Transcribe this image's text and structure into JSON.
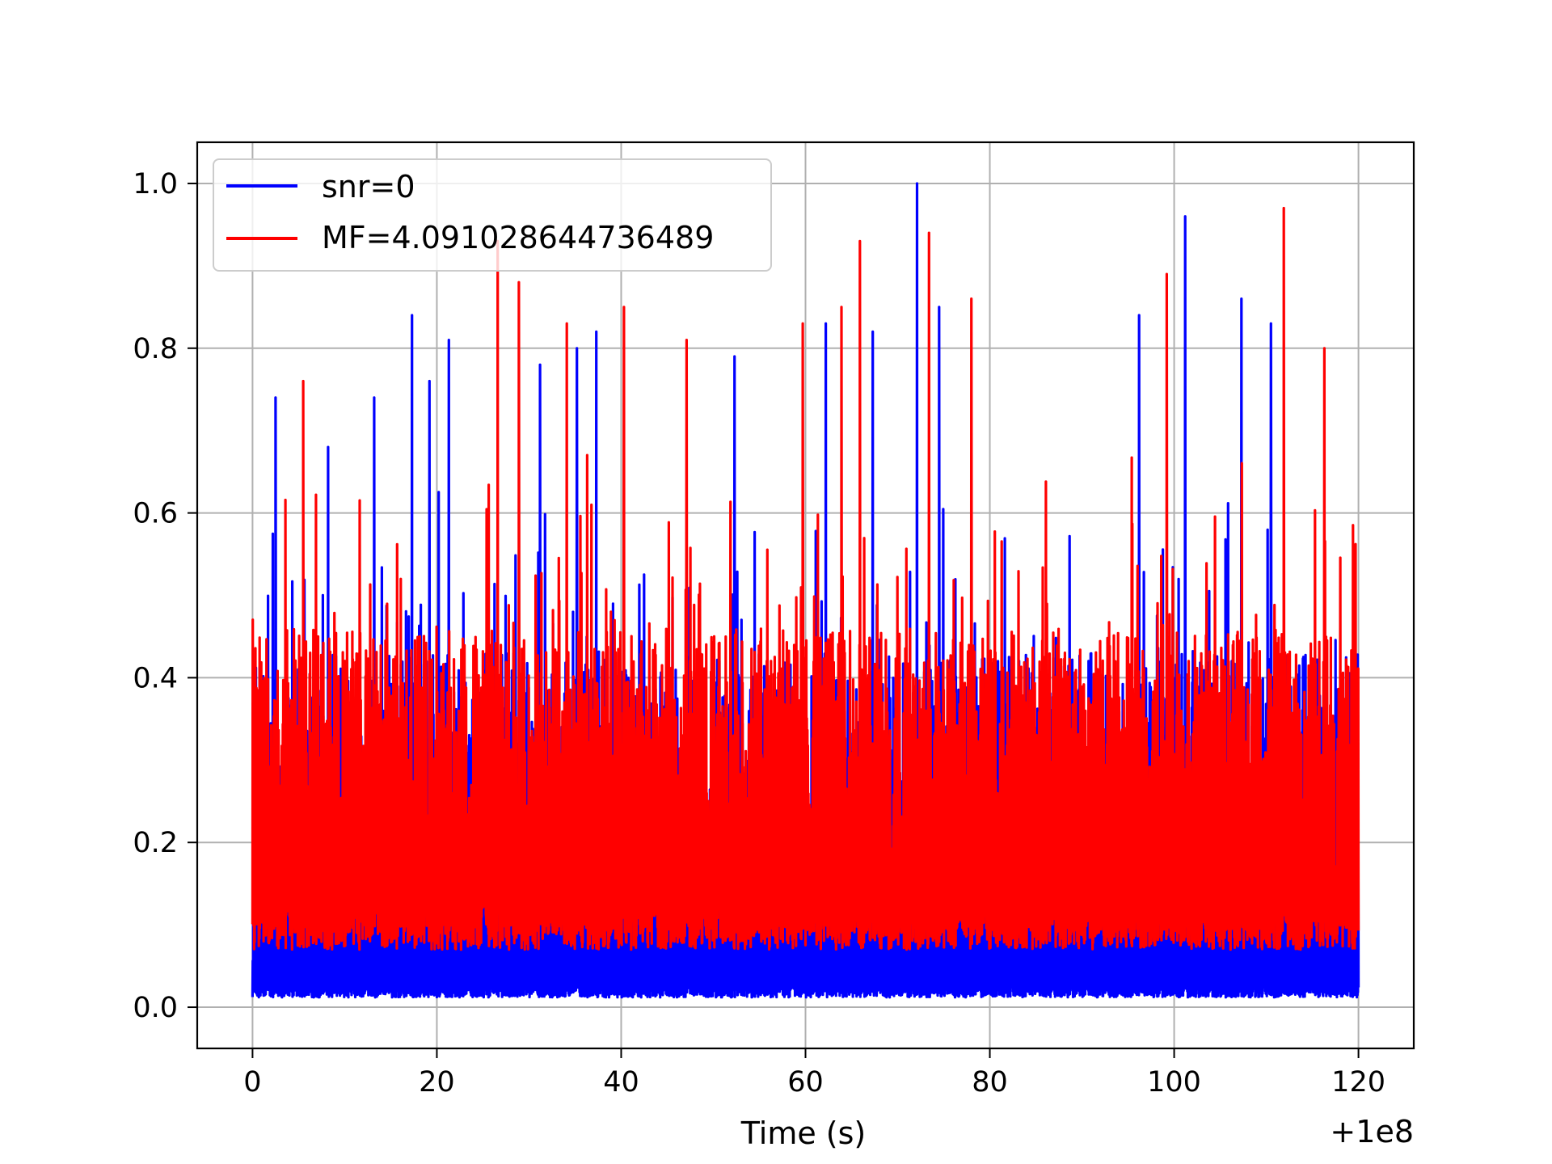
{
  "chart_data": {
    "type": "line",
    "title": "",
    "xlabel": "Time (s)",
    "ylabel": "",
    "x_offset_label": "+1e8",
    "x_range": [
      100000000,
      100000120
    ],
    "xlim": [
      99999994,
      100000126
    ],
    "ylim": [
      -0.05,
      1.05
    ],
    "x_ticks": [
      0,
      20,
      40,
      60,
      80,
      100,
      120
    ],
    "x_tick_labels": [
      "0",
      "20",
      "40",
      "60",
      "80",
      "100",
      "120"
    ],
    "y_ticks": [
      0.0,
      0.2,
      0.4,
      0.6,
      0.8,
      1.0
    ],
    "y_tick_labels": [
      "0.0",
      "0.2",
      "0.4",
      "0.6",
      "0.8",
      "1.0"
    ],
    "grid": true,
    "legend_position": "upper-left",
    "series": [
      {
        "name": "snr=0",
        "color": "#0000ff",
        "description": "dense noise signal; baseline near 0.01, bulk 0.1–0.55",
        "peaks": [
          {
            "x": 100000002.5,
            "y": 0.74
          },
          {
            "x": 100000008.2,
            "y": 0.68
          },
          {
            "x": 100000013.2,
            "y": 0.74
          },
          {
            "x": 100000017.3,
            "y": 0.84
          },
          {
            "x": 100000019.2,
            "y": 0.76
          },
          {
            "x": 100000021.3,
            "y": 0.81
          },
          {
            "x": 100000031.2,
            "y": 0.78
          },
          {
            "x": 100000035.2,
            "y": 0.8
          },
          {
            "x": 100000037.3,
            "y": 0.82
          },
          {
            "x": 100000052.3,
            "y": 0.79
          },
          {
            "x": 100000062.2,
            "y": 0.83
          },
          {
            "x": 100000067.3,
            "y": 0.82
          },
          {
            "x": 100000072.1,
            "y": 1.0
          },
          {
            "x": 100000074.5,
            "y": 0.85
          },
          {
            "x": 100000096.2,
            "y": 0.84
          },
          {
            "x": 100000101.2,
            "y": 0.96
          },
          {
            "x": 100000107.3,
            "y": 0.86
          },
          {
            "x": 100000110.5,
            "y": 0.83
          }
        ]
      },
      {
        "name": "MF=4.091028644736489",
        "color": "#ff0000",
        "description": "dense noise signal; baseline near 0.08, bulk 0.05–0.6",
        "peaks": [
          {
            "x": 100000005.5,
            "y": 0.76
          },
          {
            "x": 100000026.6,
            "y": 0.93
          },
          {
            "x": 100000028.9,
            "y": 0.88
          },
          {
            "x": 100000034.1,
            "y": 0.83
          },
          {
            "x": 100000040.3,
            "y": 0.85
          },
          {
            "x": 100000047.1,
            "y": 0.81
          },
          {
            "x": 100000059.7,
            "y": 0.83
          },
          {
            "x": 100000063.9,
            "y": 0.85
          },
          {
            "x": 100000065.9,
            "y": 0.93
          },
          {
            "x": 100000073.4,
            "y": 0.94
          },
          {
            "x": 100000078.0,
            "y": 0.86
          },
          {
            "x": 100000099.2,
            "y": 0.89
          },
          {
            "x": 100000111.9,
            "y": 0.97
          },
          {
            "x": 100000116.3,
            "y": 0.8
          }
        ]
      }
    ]
  }
}
